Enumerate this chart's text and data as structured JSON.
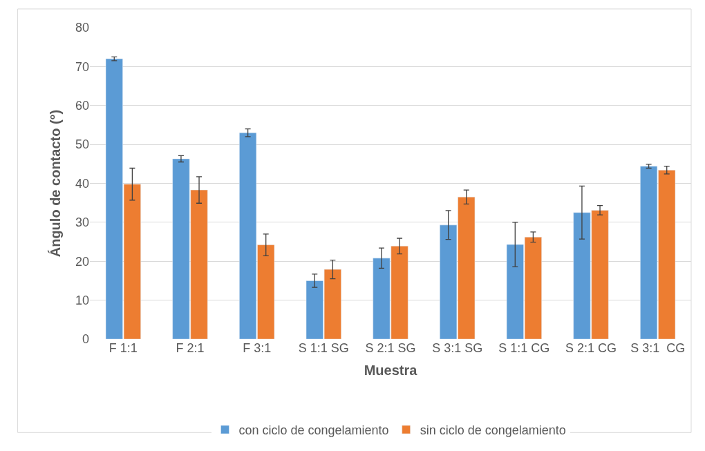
{
  "chart_data": {
    "type": "bar",
    "xlabel": "Muestra",
    "ylabel": "Ángulo de contacto (°)",
    "categories": [
      "F 1:1",
      "F 2:1",
      "F 3:1",
      "S 1:1 SG",
      "S 2:1 SG",
      "S 3:1 SG",
      "S 1:1 CG",
      "S 2:1 CG",
      "S 3:1  CG"
    ],
    "series": [
      {
        "name": "con ciclo de congelamiento",
        "color": "#5b9bd5",
        "values": [
          72.0,
          46.3,
          53.0,
          15.0,
          20.8,
          29.3,
          24.3,
          32.5,
          44.4
        ],
        "errors": [
          0.5,
          0.8,
          1.0,
          1.7,
          2.6,
          3.7,
          5.7,
          6.8,
          0.5
        ]
      },
      {
        "name": "sin ciclo de congelamiento",
        "color": "#ed7d31",
        "values": [
          39.8,
          38.3,
          24.2,
          17.9,
          23.9,
          36.5,
          26.2,
          33.1,
          43.4
        ],
        "errors": [
          4.1,
          3.4,
          2.8,
          2.4,
          2.0,
          1.8,
          1.3,
          1.2,
          1.0
        ]
      }
    ],
    "ylim": [
      0,
      80
    ],
    "yticks": [
      0,
      10,
      20,
      30,
      40,
      50,
      60,
      70,
      80
    ],
    "grid": "y",
    "legend": "bottom"
  }
}
